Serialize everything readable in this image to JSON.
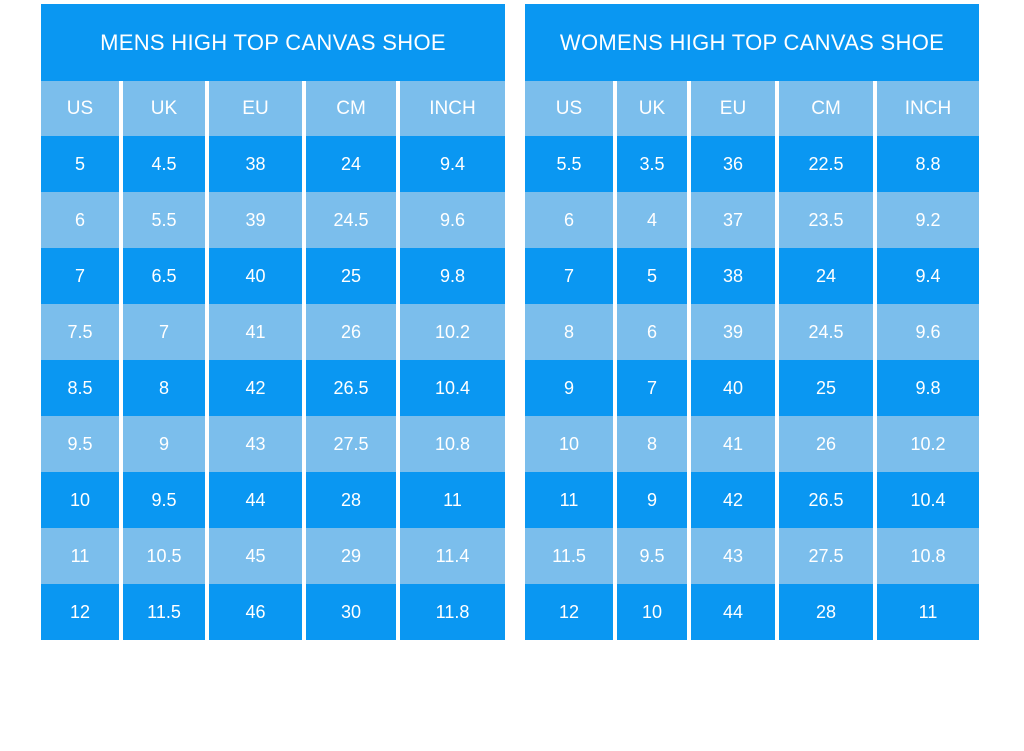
{
  "colors": {
    "bright_blue": "#0a97f2",
    "light_blue": "#7bbeec",
    "text": "#ffffff",
    "page_background": "#ffffff"
  },
  "chart_data": [
    {
      "type": "table",
      "title": "MENS HIGH TOP CANVAS SHOE",
      "columns": [
        "US",
        "UK",
        "EU",
        "CM",
        "INCH"
      ],
      "rows": [
        [
          "5",
          "4.5",
          "38",
          "24",
          "9.4"
        ],
        [
          "6",
          "5.5",
          "39",
          "24.5",
          "9.6"
        ],
        [
          "7",
          "6.5",
          "40",
          "25",
          "9.8"
        ],
        [
          "7.5",
          "7",
          "41",
          "26",
          "10.2"
        ],
        [
          "8.5",
          "8",
          "42",
          "26.5",
          "10.4"
        ],
        [
          "9.5",
          "9",
          "43",
          "27.5",
          "10.8"
        ],
        [
          "10",
          "9.5",
          "44",
          "28",
          "11"
        ],
        [
          "11",
          "10.5",
          "45",
          "29",
          "11.4"
        ],
        [
          "12",
          "11.5",
          "46",
          "30",
          "11.8"
        ]
      ]
    },
    {
      "type": "table",
      "title": "WOMENS HIGH TOP CANVAS SHOE",
      "columns": [
        "US",
        "UK",
        "EU",
        "CM",
        "INCH"
      ],
      "rows": [
        [
          "5.5",
          "3.5",
          "36",
          "22.5",
          "8.8"
        ],
        [
          "6",
          "4",
          "37",
          "23.5",
          "9.2"
        ],
        [
          "7",
          "5",
          "38",
          "24",
          "9.4"
        ],
        [
          "8",
          "6",
          "39",
          "24.5",
          "9.6"
        ],
        [
          "9",
          "7",
          "40",
          "25",
          "9.8"
        ],
        [
          "10",
          "8",
          "41",
          "26",
          "10.2"
        ],
        [
          "11",
          "9",
          "42",
          "26.5",
          "10.4"
        ],
        [
          "11.5",
          "9.5",
          "43",
          "27.5",
          "10.8"
        ],
        [
          "12",
          "10",
          "44",
          "28",
          "11"
        ]
      ]
    }
  ]
}
